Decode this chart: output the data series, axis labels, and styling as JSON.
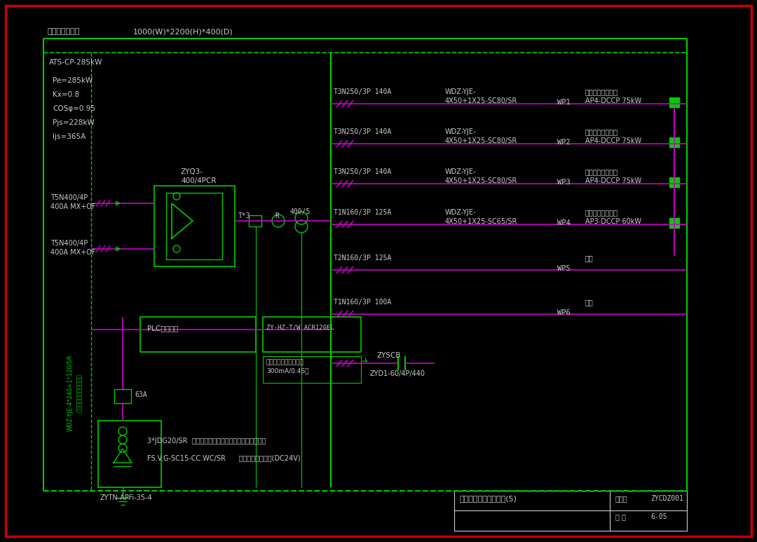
{
  "bg_color": "#000000",
  "red": "#cc0000",
  "green": "#00cc00",
  "magenta": "#cc00cc",
  "white": "#cccccc",
  "title_text": "充电桩总配电柜",
  "subtitle_text": "1000(W)*2200(H)*400(D)",
  "ats_text": "ATS-CP-285kW",
  "params": [
    "Pe=285kW",
    "Kx=0.8",
    "COSφ=0.95",
    "Pjs=228kW",
    "Ijs=365A"
  ],
  "zyq3_line1": "ZYQ3-",
  "zyq3_line2": "400/4PCR",
  "t5n_top": [
    "T5N400/4P",
    "400A MX+OF"
  ],
  "t5n_bot": [
    "T5N400/4P",
    "400A MX+OF"
  ],
  "t3_label": "T*3",
  "r_label": "R",
  "ratio_label": "400/5",
  "cable_vert1": "WDZ-YJE-4*240+1*120/SR",
  "cable_vert2": "由变电所不同母线段引来",
  "branches": [
    {
      "breaker": "T3N250/3P 140A",
      "cable1": "WDZ-YJE-",
      "cable2": "4X50+1X25-SC80/SR",
      "wp": "WP1",
      "load1": "直流流充电桩配电",
      "load2": "AP4-DCCP 75kW",
      "has_load": true
    },
    {
      "breaker": "T3N250/3P 140A",
      "cable1": "WDZ-YJE-",
      "cable2": "4X50+1X25-SC80/SR",
      "wp": "WP2",
      "load1": "直流流充电桩配电",
      "load2": "AP4-DCCP 75kW",
      "has_load": true
    },
    {
      "breaker": "T3N250/3P 140A",
      "cable1": "WDZ-YJE-",
      "cable2": "4X50+1X25-SC80/SR",
      "wp": "WP3",
      "load1": "直流流充电桩配电",
      "load2": "AP4-DCCP 75kW",
      "has_load": true
    },
    {
      "breaker": "T1N160/3P 125A",
      "cable1": "WDZ-YJE-",
      "cable2": "4X50+1X25-SC65/SR",
      "wp": "WP4",
      "load1": "直流流充电桩配电",
      "load2": "AP3-DCCP 60kW",
      "has_load": true
    },
    {
      "breaker": "T2N160/3P 125A",
      "cable1": "",
      "cable2": "",
      "wp": "WP5",
      "load1": "备用",
      "load2": "",
      "has_load": false
    },
    {
      "breaker": "T1N160/3P 100A",
      "cable1": "",
      "cable2": "",
      "wp": "WP6",
      "load1": "备用",
      "load2": "",
      "has_load": false
    }
  ],
  "plc_text": "PLC控制模块",
  "zy_hz_text": "ZY-HZ-T/W ACR120EL",
  "leakage1": "漏电报警电流及时间：",
  "leakage2": "300mA/0.4S。",
  "zyscb_text": "ZYSCB",
  "zydi_text": "ZYD1-60/4P/440",
  "label_63a": "63A",
  "apfi_text": "ZYTN-APFi-35-4",
  "jdg_text": "3*JDG20/SR  机电一体、网络仪表、电气火灾预留套管",
  "fs_text": "FS.V.G-SC15-CC.WC/SR      消防控制模块接口(DC24V)",
  "region_text": "区域充电桩配电系统图(5)",
  "drawing_no_label": "图集号",
  "drawing_no": "ZYCDZ001",
  "page_label": "页 次",
  "page_no": "6-05"
}
